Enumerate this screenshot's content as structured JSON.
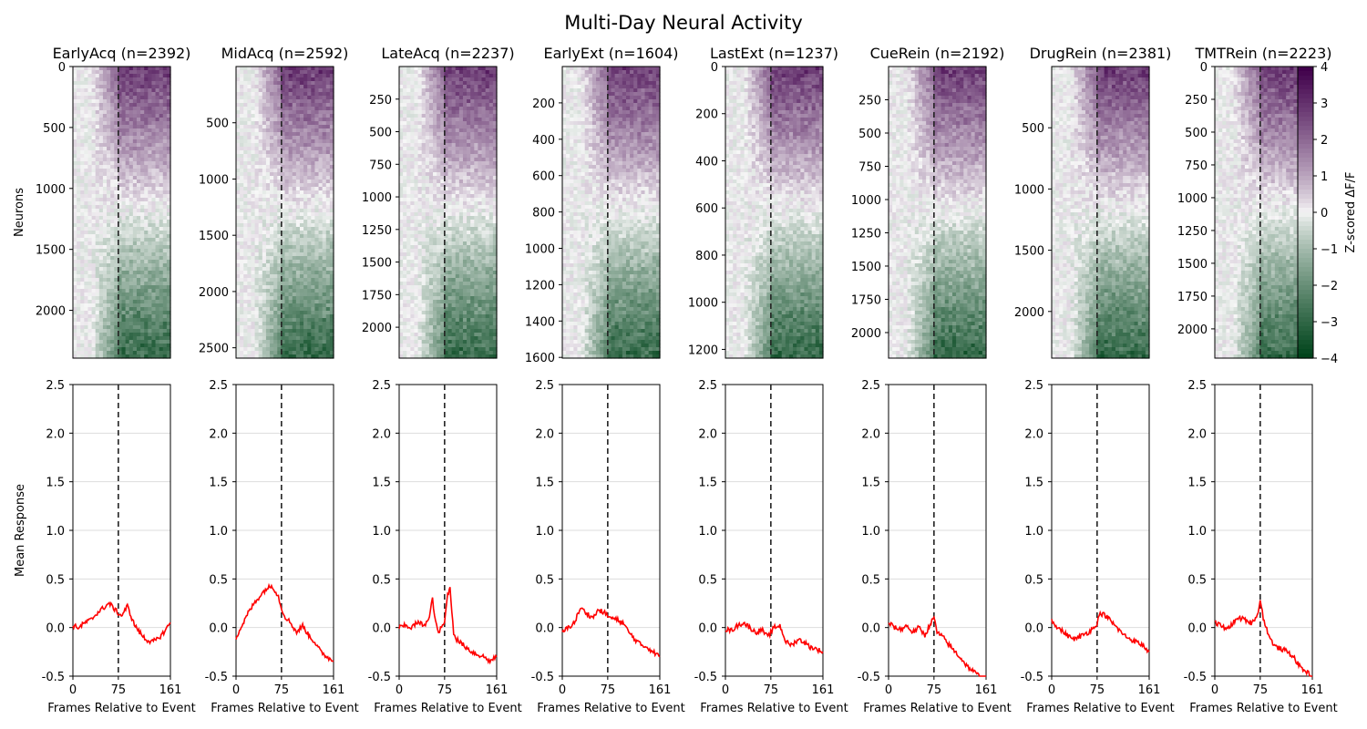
{
  "title": "Multi-Day Neural Activity",
  "colorbar": {
    "label": "Z-scored ΔF/F",
    "ticks": [
      4,
      3,
      2,
      1,
      0,
      -1,
      -2,
      -3,
      -4
    ],
    "range": [
      -4,
      4
    ],
    "colors": {
      "positive": "#40004b",
      "neutral": "#f7f7f7",
      "negative": "#00441b"
    }
  },
  "heatmap_ylabel": "Neurons",
  "line_ylabel": "Mean Response",
  "xlabel": "Frames Relative to Event",
  "event_frame": 75,
  "line_color": "#ff0000",
  "chart_data": [
    {
      "type": "heatmap",
      "panels": [
        {
          "title": "EarlyAcq (n=2392)",
          "n": 2392,
          "yticks": [
            0,
            500,
            1000,
            1500,
            2000
          ]
        },
        {
          "title": "MidAcq (n=2592)",
          "n": 2592,
          "yticks": [
            500,
            1000,
            1500,
            2000,
            2500
          ]
        },
        {
          "title": "LateAcq (n=2237)",
          "n": 2237,
          "yticks": [
            250,
            500,
            750,
            1000,
            1250,
            1500,
            1750,
            2000
          ]
        },
        {
          "title": "EarlyExt (n=1604)",
          "n": 1604,
          "yticks": [
            200,
            400,
            600,
            800,
            1000,
            1200,
            1400,
            1600
          ]
        },
        {
          "title": "LastExt (n=1237)",
          "n": 1237,
          "yticks": [
            0,
            200,
            400,
            600,
            800,
            1000,
            1200
          ]
        },
        {
          "title": "CueRein (n=2192)",
          "n": 2192,
          "yticks": [
            250,
            500,
            750,
            1000,
            1250,
            1500,
            1750,
            2000
          ]
        },
        {
          "title": "DrugRein (n=2381)",
          "n": 2381,
          "yticks": [
            500,
            1000,
            1500,
            2000
          ]
        },
        {
          "title": "TMTRein (n=2223)",
          "n": 2223,
          "yticks": [
            0,
            250,
            500,
            750,
            1000,
            1250,
            1500,
            1750,
            2000
          ]
        }
      ],
      "x_range": [
        0,
        161
      ]
    },
    {
      "type": "line",
      "ylim": [
        -0.5,
        2.5
      ],
      "yticks": [
        "-0.5",
        "0.0",
        "0.5",
        "1.0",
        "1.5",
        "2.0",
        "2.5"
      ],
      "xlim": [
        0,
        161
      ],
      "xticks": [
        0,
        75,
        161
      ],
      "grid": true,
      "series": [
        {
          "x": [
            0,
            10,
            20,
            30,
            40,
            50,
            60,
            70,
            75,
            80,
            90,
            100,
            110,
            120,
            130,
            140,
            150,
            161
          ],
          "y": [
            0.02,
            0.0,
            0.05,
            0.08,
            0.15,
            0.2,
            0.25,
            0.18,
            0.15,
            0.12,
            0.22,
            0.05,
            -0.05,
            -0.12,
            -0.15,
            -0.12,
            -0.05,
            0.05
          ]
        },
        {
          "x": [
            0,
            10,
            20,
            30,
            40,
            50,
            60,
            70,
            75,
            80,
            90,
            100,
            110,
            120,
            130,
            140,
            150,
            161
          ],
          "y": [
            -0.1,
            0.02,
            0.15,
            0.25,
            0.33,
            0.4,
            0.43,
            0.32,
            0.2,
            0.12,
            0.05,
            -0.05,
            0.02,
            -0.08,
            -0.15,
            -0.25,
            -0.3,
            -0.35
          ]
        },
        {
          "x": [
            0,
            10,
            20,
            30,
            40,
            45,
            50,
            55,
            60,
            65,
            70,
            75,
            80,
            84,
            90,
            95,
            100,
            110,
            120,
            130,
            140,
            150,
            161
          ],
          "y": [
            0.0,
            0.02,
            0.0,
            0.05,
            0.03,
            0.05,
            0.1,
            0.3,
            0.05,
            -0.05,
            0.0,
            0.05,
            0.35,
            0.4,
            -0.05,
            -0.12,
            -0.15,
            -0.2,
            -0.25,
            -0.28,
            -0.3,
            -0.35,
            -0.3
          ]
        },
        {
          "x": [
            0,
            10,
            20,
            30,
            40,
            50,
            60,
            70,
            75,
            80,
            90,
            100,
            110,
            120,
            130,
            140,
            150,
            161
          ],
          "y": [
            -0.05,
            0.0,
            0.05,
            0.2,
            0.15,
            0.1,
            0.18,
            0.15,
            0.12,
            0.1,
            0.08,
            0.05,
            -0.05,
            -0.12,
            -0.18,
            -0.2,
            -0.25,
            -0.3
          ]
        },
        {
          "x": [
            0,
            10,
            20,
            30,
            40,
            50,
            60,
            70,
            75,
            80,
            90,
            100,
            110,
            120,
            130,
            140,
            150,
            161
          ],
          "y": [
            -0.02,
            -0.03,
            0.02,
            0.05,
            0.0,
            -0.05,
            -0.02,
            -0.1,
            -0.05,
            0.0,
            0.02,
            -0.15,
            -0.18,
            -0.12,
            -0.15,
            -0.2,
            -0.22,
            -0.25
          ]
        },
        {
          "x": [
            0,
            10,
            20,
            30,
            40,
            50,
            60,
            70,
            75,
            80,
            90,
            100,
            110,
            120,
            130,
            140,
            150,
            161
          ],
          "y": [
            0.05,
            0.0,
            -0.02,
            0.02,
            -0.05,
            0.0,
            -0.08,
            0.05,
            0.1,
            -0.05,
            -0.1,
            -0.18,
            -0.25,
            -0.32,
            -0.4,
            -0.45,
            -0.5,
            -0.55
          ]
        },
        {
          "x": [
            0,
            10,
            20,
            30,
            40,
            50,
            60,
            70,
            75,
            80,
            90,
            100,
            110,
            120,
            130,
            140,
            150,
            161
          ],
          "y": [
            0.08,
            0.0,
            -0.05,
            -0.1,
            -0.12,
            -0.08,
            -0.05,
            0.0,
            0.05,
            0.15,
            0.12,
            0.05,
            -0.02,
            -0.08,
            -0.12,
            -0.15,
            -0.18,
            -0.25
          ]
        },
        {
          "x": [
            0,
            10,
            20,
            30,
            40,
            50,
            60,
            70,
            75,
            80,
            90,
            100,
            110,
            120,
            130,
            140,
            150,
            161
          ],
          "y": [
            0.05,
            0.02,
            -0.02,
            0.05,
            0.1,
            0.08,
            0.05,
            0.12,
            0.28,
            0.1,
            -0.1,
            -0.2,
            -0.22,
            -0.25,
            -0.3,
            -0.4,
            -0.45,
            -0.5
          ]
        }
      ]
    }
  ]
}
